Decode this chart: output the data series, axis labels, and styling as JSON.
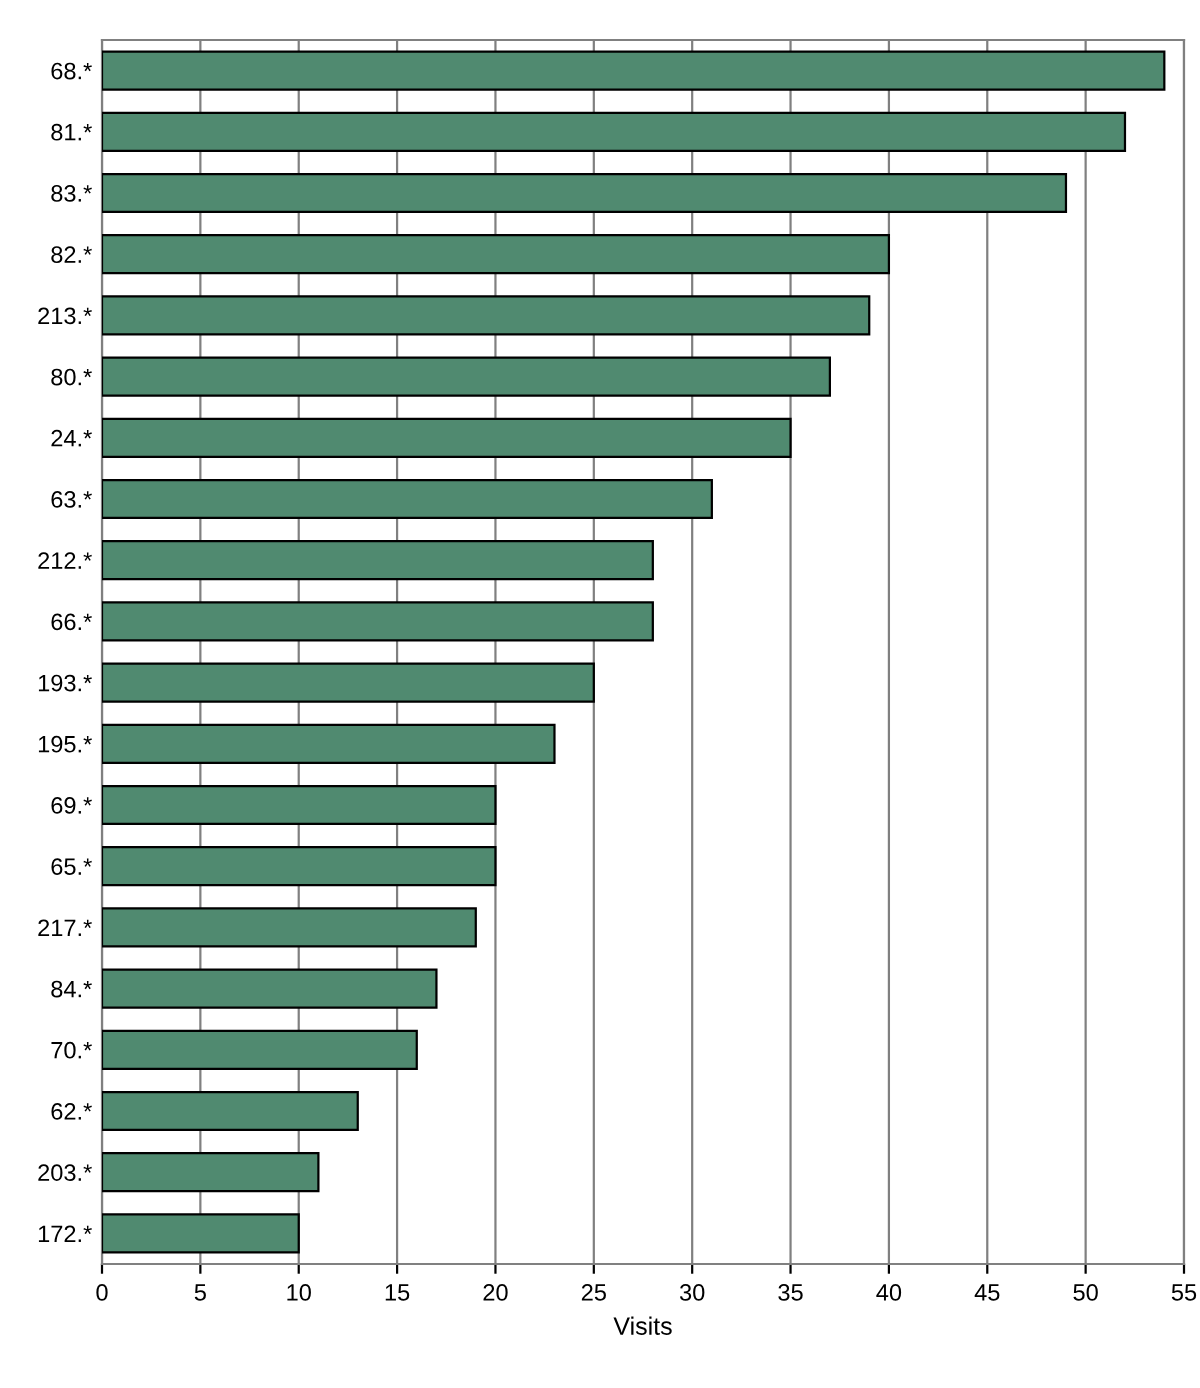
{
  "chart_data": {
    "type": "bar",
    "orientation": "horizontal",
    "xlabel": "Visits",
    "categories": [
      "68.*",
      "81.*",
      "83.*",
      "82.*",
      "213.*",
      "80.*",
      "24.*",
      "63.*",
      "212.*",
      "66.*",
      "193.*",
      "195.*",
      "69.*",
      "65.*",
      "217.*",
      "84.*",
      "70.*",
      "62.*",
      "203.*",
      "172.*"
    ],
    "values": [
      54,
      52,
      49,
      40,
      39,
      37,
      35,
      31,
      28,
      28,
      25,
      23,
      20,
      20,
      19,
      17,
      16,
      13,
      11,
      10
    ],
    "color": "#508a70",
    "xlim": [
      0,
      55
    ],
    "xticks": [
      0,
      5,
      10,
      15,
      20,
      25,
      30,
      35,
      40,
      45,
      50,
      55
    ],
    "grid": "x"
  }
}
